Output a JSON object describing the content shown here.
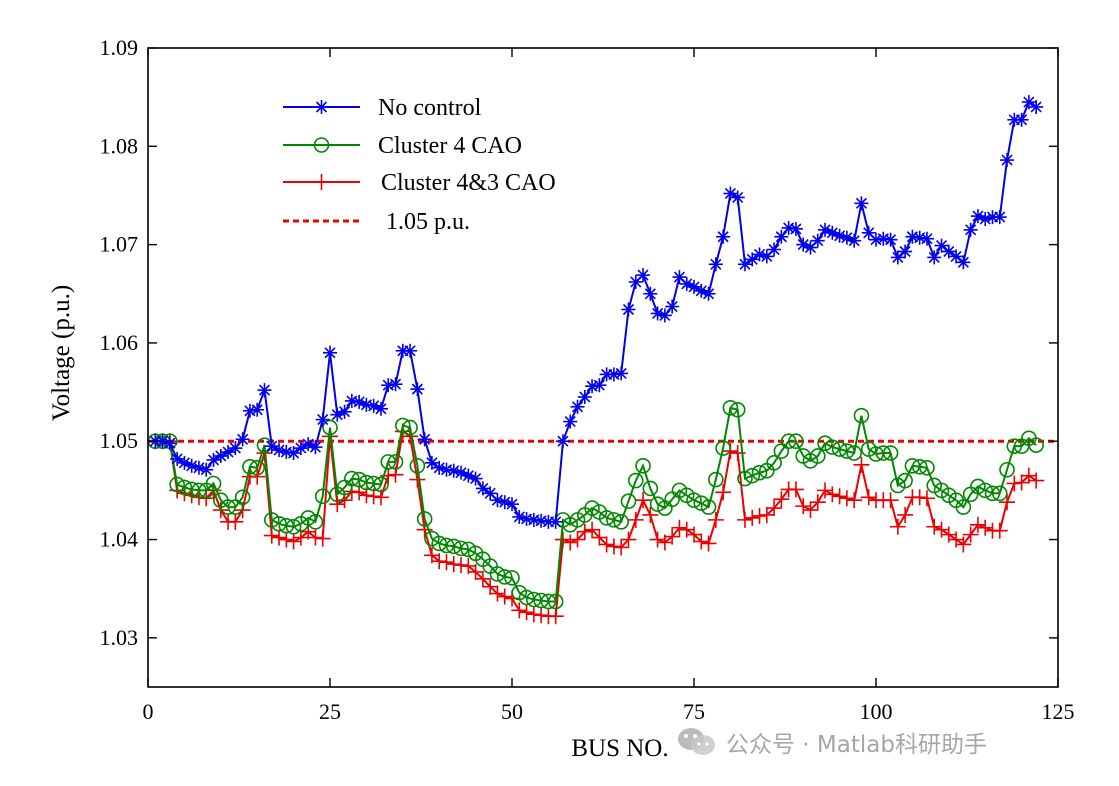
{
  "colors": {
    "no_control": "#0000ee",
    "cluster4": "#008800",
    "cluster43": "#ee0000",
    "limit": "#ee0000",
    "axis": "#000000"
  },
  "watermark": {
    "text": "公众号 · Matlab科研助手",
    "icon": "wechat-logo-icon"
  },
  "chart_data": {
    "type": "line",
    "title": "",
    "xlabel": "BUS NO.",
    "ylabel": "Voltage (p.u.)",
    "xlim": [
      0,
      125
    ],
    "ylim": [
      1.025,
      1.09
    ],
    "xticks": [
      0,
      25,
      50,
      75,
      100,
      125
    ],
    "xtick_labels": [
      "0",
      "25",
      "50",
      "75",
      "100",
      "125"
    ],
    "yticks": [
      1.03,
      1.04,
      1.05,
      1.06,
      1.07,
      1.08,
      1.09
    ],
    "ytick_labels": [
      "1.03",
      "1.04",
      "1.05",
      "1.06",
      "1.07",
      "1.08",
      "1.09"
    ],
    "legend_position": "top-left",
    "x": [
      1,
      2,
      3,
      4,
      5,
      6,
      7,
      8,
      9,
      10,
      11,
      12,
      13,
      14,
      15,
      16,
      17,
      18,
      19,
      20,
      21,
      22,
      23,
      24,
      25,
      26,
      27,
      28,
      29,
      30,
      31,
      32,
      33,
      34,
      35,
      36,
      37,
      38,
      39,
      40,
      41,
      42,
      43,
      44,
      45,
      46,
      47,
      48,
      49,
      50,
      51,
      52,
      53,
      54,
      55,
      56,
      57,
      58,
      59,
      60,
      61,
      62,
      63,
      64,
      65,
      66,
      67,
      68,
      69,
      70,
      71,
      72,
      73,
      74,
      75,
      76,
      77,
      78,
      79,
      80,
      81,
      82,
      83,
      84,
      85,
      86,
      87,
      88,
      89,
      90,
      91,
      92,
      93,
      94,
      95,
      96,
      97,
      98,
      99,
      100,
      101,
      102,
      103,
      104,
      105,
      106,
      107,
      108,
      109,
      110,
      111,
      112,
      113,
      114,
      115,
      116,
      117,
      118,
      119,
      120,
      121,
      122
    ],
    "series": [
      {
        "name": "No control",
        "marker": "star",
        "color": "#0000ee",
        "values": [
          1.05,
          1.05,
          1.0498,
          1.0482,
          1.0478,
          1.0475,
          1.0473,
          1.0471,
          1.0481,
          1.0485,
          1.0489,
          1.0493,
          1.0502,
          1.0531,
          1.0532,
          1.0552,
          1.0495,
          1.0491,
          1.0489,
          1.0488,
          1.0493,
          1.0497,
          1.0494,
          1.0522,
          1.059,
          1.0527,
          1.053,
          1.0541,
          1.054,
          1.0537,
          1.0536,
          1.0533,
          1.0557,
          1.0558,
          1.0592,
          1.0592,
          1.0553,
          1.0502,
          1.0478,
          1.0473,
          1.0471,
          1.047,
          1.0468,
          1.0465,
          1.0462,
          1.0452,
          1.0447,
          1.044,
          1.0438,
          1.0436,
          1.0423,
          1.0421,
          1.042,
          1.0419,
          1.0418,
          1.0418,
          1.05,
          1.052,
          1.0535,
          1.0545,
          1.0556,
          1.0557,
          1.0568,
          1.0568,
          1.0569,
          1.0634,
          1.0662,
          1.0669,
          1.065,
          1.063,
          1.0628,
          1.0637,
          1.0667,
          1.066,
          1.0657,
          1.0653,
          1.065,
          1.068,
          1.0708,
          1.0752,
          1.0748,
          1.068,
          1.0685,
          1.069,
          1.0688,
          1.0695,
          1.0708,
          1.0717,
          1.0716,
          1.07,
          1.0697,
          1.0704,
          1.0715,
          1.0712,
          1.0709,
          1.0707,
          1.0704,
          1.0742,
          1.0712,
          1.0705,
          1.0706,
          1.0705,
          1.0687,
          1.0693,
          1.0708,
          1.0707,
          1.0706,
          1.0687,
          1.0699,
          1.0693,
          1.0688,
          1.0682,
          1.0715,
          1.0729,
          1.0726,
          1.0728,
          1.0728,
          1.0786,
          1.0827,
          1.0827,
          1.0845,
          1.084
        ]
      },
      {
        "name": "Cluster 4 CAO",
        "marker": "circle",
        "color": "#008800",
        "values": [
          1.05,
          1.05,
          1.05,
          1.0456,
          1.0453,
          1.0451,
          1.045,
          1.045,
          1.0457,
          1.044,
          1.0433,
          1.0433,
          1.0443,
          1.0474,
          1.0473,
          1.0496,
          1.042,
          1.0416,
          1.0414,
          1.0413,
          1.0416,
          1.0422,
          1.0418,
          1.0444,
          1.0514,
          1.0446,
          1.0453,
          1.0462,
          1.0461,
          1.0458,
          1.0457,
          1.0456,
          1.0479,
          1.0479,
          1.0516,
          1.0514,
          1.0475,
          1.0421,
          1.0401,
          1.0396,
          1.0394,
          1.0393,
          1.0391,
          1.039,
          1.0386,
          1.038,
          1.0373,
          1.0365,
          1.0362,
          1.0361,
          1.0346,
          1.0341,
          1.0339,
          1.0338,
          1.0337,
          1.0337,
          1.042,
          1.0415,
          1.042,
          1.0425,
          1.0432,
          1.0428,
          1.0422,
          1.042,
          1.0418,
          1.0439,
          1.046,
          1.0475,
          1.0452,
          1.0436,
          1.0432,
          1.0441,
          1.045,
          1.0445,
          1.044,
          1.0437,
          1.0433,
          1.0461,
          1.0493,
          1.0534,
          1.0532,
          1.0462,
          1.0465,
          1.0468,
          1.047,
          1.0478,
          1.049,
          1.05,
          1.05,
          1.0485,
          1.048,
          1.0485,
          1.0498,
          1.0494,
          1.0492,
          1.049,
          1.0488,
          1.0526,
          1.0492,
          1.0487,
          1.0488,
          1.0488,
          1.0455,
          1.046,
          1.0475,
          1.0474,
          1.0473,
          1.0455,
          1.045,
          1.0445,
          1.044,
          1.0433,
          1.0446,
          1.0454,
          1.045,
          1.0447,
          1.0447,
          1.0471,
          1.0495,
          1.0495,
          1.0503,
          1.0496
        ]
      },
      {
        "name": "Cluster 4&3 CAO",
        "marker": "plus",
        "color": "#ee0000",
        "values": [
          1.05,
          1.05,
          1.05,
          1.045,
          1.0447,
          1.0445,
          1.0443,
          1.0442,
          1.045,
          1.043,
          1.0418,
          1.0418,
          1.043,
          1.0464,
          1.0464,
          1.0488,
          1.0404,
          1.0402,
          1.04,
          1.0398,
          1.0402,
          1.0408,
          1.0402,
          1.0401,
          1.0505,
          1.0436,
          1.044,
          1.0449,
          1.0448,
          1.0445,
          1.0444,
          1.0443,
          1.0465,
          1.0466,
          1.051,
          1.0505,
          1.0461,
          1.041,
          1.0384,
          1.0378,
          1.0377,
          1.0375,
          1.0374,
          1.0373,
          1.0367,
          1.036,
          1.0352,
          1.0345,
          1.0342,
          1.034,
          1.0328,
          1.0326,
          1.0324,
          1.0323,
          1.0322,
          1.0322,
          1.04,
          1.0397,
          1.04,
          1.0408,
          1.041,
          1.0402,
          1.0395,
          1.0393,
          1.0392,
          1.04,
          1.042,
          1.044,
          1.0425,
          1.04,
          1.0397,
          1.0403,
          1.0412,
          1.041,
          1.0405,
          1.0398,
          1.0396,
          1.042,
          1.0448,
          1.049,
          1.0488,
          1.042,
          1.0422,
          1.0424,
          1.0425,
          1.0432,
          1.0441,
          1.0451,
          1.0451,
          1.0434,
          1.043,
          1.0438,
          1.045,
          1.0446,
          1.0444,
          1.0442,
          1.044,
          1.0476,
          1.0443,
          1.044,
          1.044,
          1.044,
          1.0413,
          1.0425,
          1.0443,
          1.0443,
          1.0442,
          1.0413,
          1.041,
          1.0405,
          1.04,
          1.0395,
          1.0405,
          1.0415,
          1.0412,
          1.0409,
          1.0409,
          1.0438,
          1.0457,
          1.0458,
          1.0465,
          1.046
        ]
      },
      {
        "name": "1.05 p.u.",
        "marker": "none",
        "color": "#ee0000",
        "dashed": true,
        "constant": 1.05
      }
    ]
  }
}
